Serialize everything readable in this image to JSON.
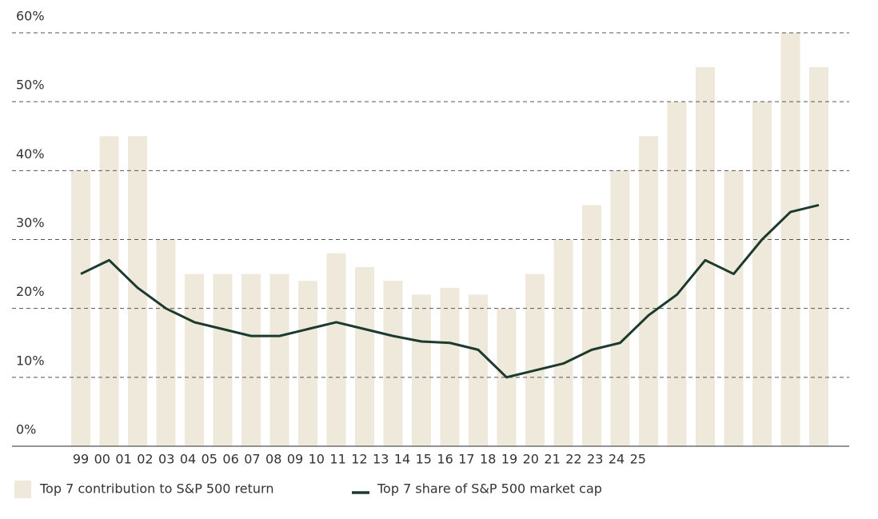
{
  "chart_data": {
    "type": "bar",
    "categories": [
      "99",
      "00",
      "01",
      "02",
      "03",
      "04",
      "05",
      "06",
      "07",
      "08",
      "09",
      "10",
      "11",
      "12",
      "13",
      "14",
      "15",
      "16",
      "17",
      "18",
      "19",
      "20",
      "21",
      "22",
      "23",
      "24",
      "25"
    ],
    "series": [
      {
        "name": "Top 7 contribution to S&P 500 return",
        "color": "#efe9dc",
        "type": "bar",
        "values": [
          40,
          45,
          45,
          30,
          25,
          25,
          25,
          25,
          24,
          28,
          26,
          24,
          22,
          23,
          22,
          20,
          25,
          30,
          35,
          40,
          45,
          50,
          55,
          40,
          50,
          60,
          55
        ]
      },
      {
        "name": "Top 7 share of S&P 500 market cap",
        "color": "#1c3b2e",
        "type": "line",
        "values": [
          25,
          27,
          23,
          20,
          18,
          17,
          16,
          16,
          17,
          18,
          17,
          16,
          15.2,
          15,
          14,
          10,
          11,
          12,
          14,
          15,
          19,
          22,
          27,
          25,
          30,
          34,
          35
        ]
      }
    ],
    "ylim": [
      0,
      60
    ],
    "yticks": [
      {
        "value": 0,
        "label": "0%"
      },
      {
        "value": 10,
        "label": "10%"
      },
      {
        "value": 20,
        "label": "20%"
      },
      {
        "value": 30,
        "label": "30%"
      },
      {
        "value": 40,
        "label": "40%"
      },
      {
        "value": 50,
        "label": "50%"
      },
      {
        "value": 60,
        "label": "60%"
      }
    ],
    "grid": true
  }
}
